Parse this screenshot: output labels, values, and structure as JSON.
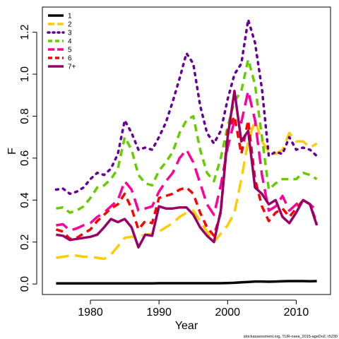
{
  "chart_data": {
    "type": "line",
    "xlabel": "Year",
    "ylabel": "F",
    "xlim": [
      1973,
      2015
    ],
    "ylim": [
      -0.05,
      1.32
    ],
    "xticks": [
      1980,
      1990,
      2000,
      2010
    ],
    "yticks": [
      0.0,
      0.2,
      0.4,
      0.6,
      0.8,
      1.0,
      1.2
    ],
    "ytick_labels": [
      "0.0",
      "0.2",
      "0.4",
      "0.6",
      "0.8",
      "1.0",
      "1.2"
    ],
    "grid": false,
    "legend_position": "top-left",
    "x": [
      1975,
      1976,
      1977,
      1978,
      1979,
      1980,
      1981,
      1982,
      1983,
      1984,
      1985,
      1986,
      1987,
      1988,
      1989,
      1990,
      1991,
      1992,
      1993,
      1994,
      1995,
      1996,
      1997,
      1998,
      1999,
      2000,
      2001,
      2002,
      2003,
      2004,
      2005,
      2006,
      2007,
      2008,
      2009,
      2010,
      2011,
      2012,
      2013
    ],
    "series": [
      {
        "name": "1",
        "color": "#000000",
        "dash": "solid",
        "values": [
          0.003,
          0.003,
          0.003,
          0.003,
          0.003,
          0.003,
          0.003,
          0.003,
          0.003,
          0.003,
          0.003,
          0.003,
          0.003,
          0.003,
          0.003,
          0.004,
          0.004,
          0.004,
          0.004,
          0.004,
          0.004,
          0.004,
          0.004,
          0.004,
          0.004,
          0.005,
          0.006,
          0.008,
          0.01,
          0.012,
          0.012,
          0.011,
          0.012,
          0.013,
          0.014,
          0.014,
          0.014,
          0.013,
          0.014
        ]
      },
      {
        "name": "2",
        "color": "#FFCC00",
        "dash": "long",
        "values": [
          0.125,
          0.13,
          0.135,
          0.135,
          0.13,
          0.13,
          0.125,
          0.12,
          0.14,
          0.18,
          0.22,
          0.225,
          0.225,
          0.235,
          0.24,
          0.25,
          0.27,
          0.29,
          0.32,
          0.34,
          0.35,
          0.3,
          0.25,
          0.2,
          0.24,
          0.28,
          0.34,
          0.5,
          0.68,
          0.78,
          0.68,
          0.63,
          0.62,
          0.64,
          0.72,
          0.68,
          0.68,
          0.65,
          0.67
        ]
      },
      {
        "name": "3",
        "color": "#660099",
        "dash": "dot",
        "values": [
          0.45,
          0.455,
          0.43,
          0.44,
          0.46,
          0.5,
          0.53,
          0.52,
          0.55,
          0.62,
          0.78,
          0.72,
          0.64,
          0.65,
          0.64,
          0.7,
          0.77,
          0.87,
          0.98,
          1.1,
          1.05,
          0.85,
          0.72,
          0.67,
          0.73,
          0.88,
          1.0,
          1.05,
          1.26,
          1.15,
          0.93,
          0.61,
          0.63,
          0.62,
          0.7,
          0.64,
          0.65,
          0.64,
          0.61
        ]
      },
      {
        "name": "4",
        "color": "#66CC00",
        "dash": "short",
        "values": [
          0.36,
          0.365,
          0.34,
          0.35,
          0.37,
          0.41,
          0.46,
          0.47,
          0.5,
          0.55,
          0.7,
          0.64,
          0.52,
          0.48,
          0.47,
          0.54,
          0.58,
          0.63,
          0.72,
          0.78,
          0.8,
          0.64,
          0.53,
          0.49,
          0.6,
          0.75,
          0.87,
          0.92,
          1.07,
          0.95,
          0.7,
          0.45,
          0.48,
          0.5,
          0.5,
          0.5,
          0.53,
          0.52,
          0.5
        ]
      },
      {
        "name": "5",
        "color": "#FF0099",
        "dash": "long",
        "values": [
          0.28,
          0.285,
          0.255,
          0.265,
          0.28,
          0.29,
          0.32,
          0.34,
          0.37,
          0.4,
          0.49,
          0.45,
          0.35,
          0.36,
          0.37,
          0.44,
          0.49,
          0.53,
          0.6,
          0.64,
          0.58,
          0.48,
          0.38,
          0.33,
          0.47,
          0.65,
          0.78,
          0.77,
          0.92,
          0.78,
          0.52,
          0.35,
          0.37,
          0.42,
          0.35,
          0.38,
          0.4,
          0.38,
          0.35
        ]
      },
      {
        "name": "6",
        "color": "#FF0000",
        "dash": "short",
        "values": [
          0.26,
          0.25,
          0.215,
          0.22,
          0.24,
          0.26,
          0.3,
          0.33,
          0.36,
          0.38,
          0.43,
          0.36,
          0.26,
          0.3,
          0.29,
          0.41,
          0.42,
          0.43,
          0.45,
          0.46,
          0.43,
          0.34,
          0.27,
          0.23,
          0.34,
          0.73,
          0.8,
          0.62,
          0.78,
          0.5,
          0.37,
          0.3,
          0.34,
          0.36,
          0.32,
          0.36,
          0.4,
          0.38,
          0.29
        ]
      },
      {
        "name": "7+",
        "color": "#990066",
        "dash": "solid",
        "values": [
          0.235,
          0.23,
          0.21,
          0.215,
          0.22,
          0.225,
          0.235,
          0.27,
          0.31,
          0.295,
          0.31,
          0.27,
          0.175,
          0.235,
          0.23,
          0.37,
          0.36,
          0.36,
          0.365,
          0.365,
          0.33,
          0.27,
          0.23,
          0.2,
          0.35,
          0.7,
          0.92,
          0.68,
          0.73,
          0.46,
          0.43,
          0.38,
          0.4,
          0.32,
          0.29,
          0.34,
          0.4,
          0.38,
          0.28
        ]
      }
    ]
  },
  "footer": "stockassessment.org, TUR-nsea_2015-ageDo2, r5230"
}
